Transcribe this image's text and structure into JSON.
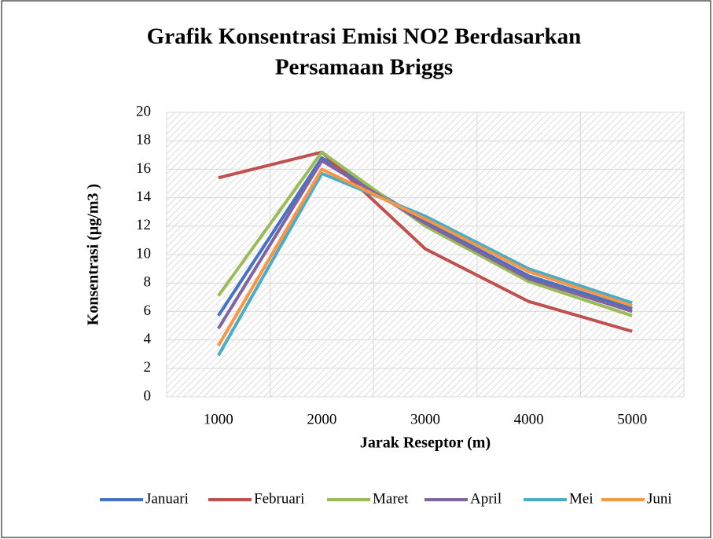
{
  "chart_data": {
    "type": "line",
    "title": [
      "Grafik Konsentrasi Emisi NO2 Berdasarkan",
      "Persamaan Briggs"
    ],
    "x_label": "Jarak Reseptor (m)",
    "y_label": "Konsentrasi (µg/m3 )",
    "categories": [
      "1000",
      "2000",
      "3000",
      "4000",
      "5000"
    ],
    "series": [
      {
        "name": "Januari",
        "color": "#4472c4",
        "values": [
          5.7,
          16.8,
          12.3,
          8.5,
          6.2
        ]
      },
      {
        "name": "Februari",
        "color": "#c0504d",
        "values": [
          15.4,
          17.2,
          10.4,
          6.7,
          4.6
        ]
      },
      {
        "name": "Maret",
        "color": "#9bbb59",
        "values": [
          7.1,
          17.2,
          12.0,
          8.1,
          5.7
        ]
      },
      {
        "name": "April",
        "color": "#8064a2",
        "values": [
          4.8,
          16.6,
          12.2,
          8.3,
          6.0
        ]
      },
      {
        "name": "Mei",
        "color": "#4bacc6",
        "values": [
          2.9,
          15.7,
          12.7,
          9.0,
          6.6
        ]
      },
      {
        "name": "Juni",
        "color": "#f79646",
        "values": [
          3.6,
          16.0,
          12.5,
          8.8,
          6.4
        ]
      }
    ],
    "ylim": [
      0,
      20
    ],
    "yticks": [
      0,
      2,
      4,
      6,
      8,
      10,
      12,
      14,
      16,
      18,
      20
    ],
    "grid": true,
    "legend": "bottom"
  }
}
